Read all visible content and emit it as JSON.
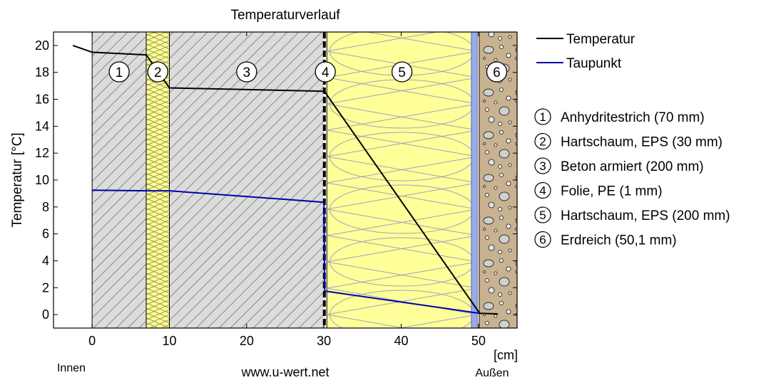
{
  "chart_data": {
    "type": "line",
    "title": "Temperaturverlauf",
    "xlabel": "[cm]",
    "ylabel": "Temperatur [°C]",
    "xlim": [
      -5,
      55
    ],
    "ylim": [
      -1,
      21
    ],
    "x_ticks": [
      "0",
      "10",
      "20",
      "30",
      "40",
      "50"
    ],
    "y_ticks": [
      "0",
      "2",
      "4",
      "6",
      "8",
      "10",
      "12",
      "14",
      "16",
      "18",
      "20"
    ],
    "side_labels": {
      "inside": "Innen",
      "outside": "Außen"
    },
    "watermark": "www.u-wert.net",
    "series": [
      {
        "name": "Temperatur",
        "color": "#000000",
        "x": [
          -2.5,
          0,
          7,
          10,
          30,
          30.1,
          50.1,
          50.1,
          52.5
        ],
        "y": [
          20,
          19.5,
          19.3,
          16.85,
          16.6,
          16.55,
          0.15,
          0.1,
          0.05
        ]
      },
      {
        "name": "Taupunkt",
        "color": "#0000aa",
        "x": [
          0,
          7,
          10,
          30,
          30.1,
          50.1
        ],
        "y": [
          9.25,
          9.2,
          9.2,
          8.35,
          1.75,
          0.1
        ]
      }
    ],
    "layers": [
      {
        "num": "1",
        "label": "Anhydritestrich (70 mm)",
        "start": 0,
        "end": 7,
        "pattern": "hatch"
      },
      {
        "num": "2",
        "label": "Hartschaum, EPS (30 mm)",
        "start": 7,
        "end": 10,
        "pattern": "zigzag-yellow"
      },
      {
        "num": "3",
        "label": "Beton armiert (200 mm)",
        "start": 10,
        "end": 30,
        "pattern": "hatch"
      },
      {
        "num": "4",
        "label": "Folie, PE (1 mm)",
        "start": 30,
        "end": 30.1,
        "pattern": "membrane"
      },
      {
        "num": "5",
        "label": "Hartschaum, EPS (200 mm)",
        "start": 30.1,
        "end": 50.1,
        "pattern": "insulation-yellow"
      },
      {
        "num": "6",
        "label": "Erdreich (50,1 mm)",
        "start": 50.1,
        "end": 55,
        "pattern": "soil"
      }
    ],
    "legend_position": "right"
  }
}
